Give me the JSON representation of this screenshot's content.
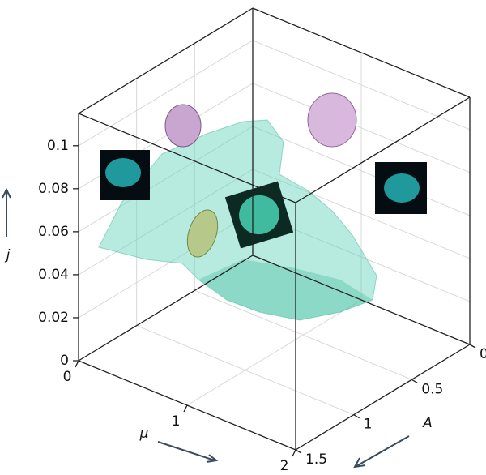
{
  "chart_data": {
    "type": "surface3d",
    "xlabel": "μ",
    "ylabel": "A",
    "zlabel": "j",
    "xlim": [
      0,
      2
    ],
    "xticks": [
      0,
      1,
      2
    ],
    "ylim": [
      0,
      1.5
    ],
    "yticks": [
      0,
      0.5,
      1,
      1.5
    ],
    "zlim": [
      0,
      0.115
    ],
    "zticks": [
      0,
      0.02,
      0.04,
      0.06,
      0.08,
      0.1
    ],
    "grid": true
  }
}
